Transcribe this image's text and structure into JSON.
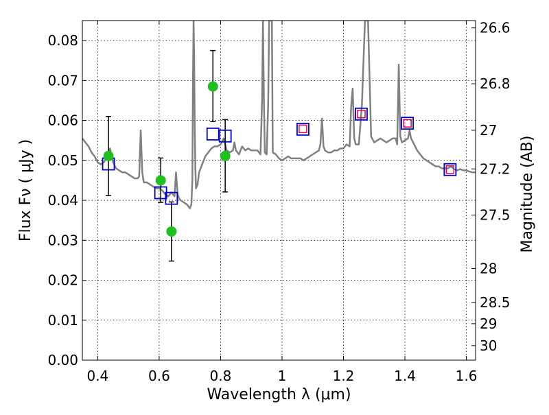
{
  "chart_data": {
    "type": "scatter",
    "xlabel": "Wavelength  λ (μm)",
    "ylabel": "Flux  Fν ( μJy )",
    "y2label": "Magnitude (AB)",
    "xlim": [
      0.35,
      1.63
    ],
    "ylim": [
      0.0,
      0.085
    ],
    "grid": true,
    "x_ticks": [
      0.4,
      0.6,
      0.8,
      1.0,
      1.2,
      1.4,
      1.6
    ],
    "x_tick_labels": [
      "0.4",
      "0.6",
      "0.8",
      "1",
      "1.2",
      "1.4",
      "1.6"
    ],
    "y_ticks": [
      0.0,
      0.01,
      0.02,
      0.03,
      0.04,
      0.05,
      0.06,
      0.07,
      0.08
    ],
    "y_tick_labels": [
      "0.00",
      "0.01",
      "0.02",
      "0.03",
      "0.04",
      "0.05",
      "0.06",
      "0.07",
      "0.08"
    ],
    "y2_ticks": [
      26.6,
      26.8,
      27.0,
      27.2,
      27.5,
      28.0,
      28.5,
      29.0,
      30.0
    ],
    "y2_tick_labels": [
      "26.6",
      "26.8",
      "27",
      "27.2",
      "27.5",
      "28",
      "28.5",
      "29",
      "30"
    ],
    "colors": {
      "model": "#808080",
      "observed": "#1fbf1f",
      "errorbar": "#000000",
      "synthetic_box": "#0000cc",
      "inner_box": "#e0004e"
    },
    "model_spectrum": {
      "x": [
        0.35,
        0.36,
        0.37,
        0.38,
        0.39,
        0.4,
        0.41,
        0.42,
        0.43,
        0.44,
        0.45,
        0.46,
        0.47,
        0.48,
        0.49,
        0.5,
        0.51,
        0.52,
        0.53,
        0.535,
        0.54,
        0.545,
        0.55,
        0.56,
        0.57,
        0.58,
        0.59,
        0.6,
        0.61,
        0.62,
        0.63,
        0.64,
        0.65,
        0.655,
        0.66,
        0.665,
        0.67,
        0.68,
        0.69,
        0.7,
        0.705,
        0.708,
        0.71,
        0.712,
        0.714,
        0.716,
        0.718,
        0.72,
        0.725,
        0.73,
        0.74,
        0.75,
        0.76,
        0.77,
        0.78,
        0.79,
        0.8,
        0.81,
        0.82,
        0.83,
        0.84,
        0.845,
        0.85,
        0.86,
        0.87,
        0.88,
        0.89,
        0.9,
        0.91,
        0.92,
        0.93,
        0.935,
        0.938,
        0.941,
        0.944,
        0.95,
        0.955,
        0.958,
        0.961,
        0.964,
        0.967,
        0.97,
        0.98,
        0.99,
        1.0,
        1.01,
        1.02,
        1.03,
        1.04,
        1.05,
        1.06,
        1.07,
        1.08,
        1.09,
        1.1,
        1.11,
        1.12,
        1.125,
        1.13,
        1.135,
        1.14,
        1.15,
        1.16,
        1.17,
        1.18,
        1.19,
        1.2,
        1.21,
        1.22,
        1.225,
        1.23,
        1.235,
        1.24,
        1.25,
        1.26,
        1.27,
        1.28,
        1.29,
        1.3,
        1.31,
        1.32,
        1.33,
        1.34,
        1.35,
        1.36,
        1.37,
        1.375,
        1.38,
        1.385,
        1.39,
        1.4,
        1.41,
        1.415,
        1.42,
        1.43,
        1.44,
        1.45,
        1.46,
        1.47,
        1.48,
        1.49,
        1.5,
        1.51,
        1.52,
        1.53,
        1.54,
        1.55,
        1.56,
        1.57,
        1.58,
        1.59,
        1.6,
        1.61,
        1.62,
        1.63
      ],
      "y": [
        0.0555,
        0.0545,
        0.0535,
        0.052,
        0.051,
        0.0495,
        0.049,
        0.0495,
        0.051,
        0.053,
        0.0495,
        0.048,
        0.0475,
        0.047,
        0.047,
        0.0465,
        0.046,
        0.0455,
        0.0455,
        0.046,
        0.0575,
        0.047,
        0.0445,
        0.0445,
        0.044,
        0.0435,
        0.043,
        0.043,
        0.0425,
        0.0415,
        0.041,
        0.042,
        0.041,
        0.047,
        0.0415,
        0.0405,
        0.04,
        0.0395,
        0.039,
        0.038,
        0.039,
        0.045,
        0.07,
        0.085,
        0.076,
        0.058,
        0.048,
        0.043,
        0.044,
        0.047,
        0.049,
        0.051,
        0.052,
        0.053,
        0.0535,
        0.0535,
        0.054,
        0.0555,
        0.0525,
        0.052,
        0.0525,
        0.0545,
        0.0525,
        0.0515,
        0.0535,
        0.0525,
        0.053,
        0.0525,
        0.0525,
        0.0525,
        0.0515,
        0.065,
        0.085,
        0.065,
        0.052,
        0.0515,
        0.064,
        0.085,
        0.085,
        0.085,
        0.085,
        0.052,
        0.0515,
        0.0505,
        0.05,
        0.0505,
        0.051,
        0.0505,
        0.0505,
        0.0505,
        0.0505,
        0.05,
        0.0505,
        0.051,
        0.0515,
        0.052,
        0.0525,
        0.054,
        0.0605,
        0.0535,
        0.0525,
        0.052,
        0.052,
        0.0525,
        0.0525,
        0.053,
        0.053,
        0.054,
        0.0535,
        0.0635,
        0.068,
        0.0555,
        0.054,
        0.054,
        0.064,
        0.085,
        0.085,
        0.056,
        0.0545,
        0.055,
        0.0555,
        0.055,
        0.0545,
        0.055,
        0.0555,
        0.0555,
        0.054,
        0.074,
        0.056,
        0.0545,
        0.055,
        0.0555,
        0.0575,
        0.0555,
        0.054,
        0.0525,
        0.0515,
        0.0505,
        0.05,
        0.0495,
        0.049,
        0.0485,
        0.0485,
        0.048,
        0.048,
        0.048,
        0.0485,
        0.0478,
        0.0475,
        0.0478,
        0.0475,
        0.0475,
        0.0472,
        0.047,
        0.047
      ]
    },
    "observed_points": [
      {
        "x": 0.435,
        "y": 0.0511,
        "err_low": 0.0412,
        "err_high": 0.061
      },
      {
        "x": 0.605,
        "y": 0.045,
        "err_low": 0.0395,
        "err_high": 0.0506
      },
      {
        "x": 0.64,
        "y": 0.0322,
        "err_low": 0.0248,
        "err_high": 0.0396
      },
      {
        "x": 0.775,
        "y": 0.0685,
        "err_low": 0.0597,
        "err_high": 0.0775
      },
      {
        "x": 0.815,
        "y": 0.0511,
        "err_low": 0.0421,
        "err_high": 0.0602
      }
    ],
    "synthetic_points": [
      {
        "x": 0.435,
        "y": 0.0491
      },
      {
        "x": 0.605,
        "y": 0.0419
      },
      {
        "x": 0.64,
        "y": 0.0405
      },
      {
        "x": 0.775,
        "y": 0.0566
      },
      {
        "x": 0.815,
        "y": 0.0561
      },
      {
        "x": 1.068,
        "y": 0.0578
      },
      {
        "x": 1.258,
        "y": 0.0616
      },
      {
        "x": 1.408,
        "y": 0.0593
      },
      {
        "x": 1.547,
        "y": 0.0477
      }
    ],
    "photometry_points": [
      {
        "x": 1.068,
        "y": 0.0579
      },
      {
        "x": 1.258,
        "y": 0.0616
      },
      {
        "x": 1.408,
        "y": 0.0593
      },
      {
        "x": 1.547,
        "y": 0.0477
      }
    ]
  }
}
